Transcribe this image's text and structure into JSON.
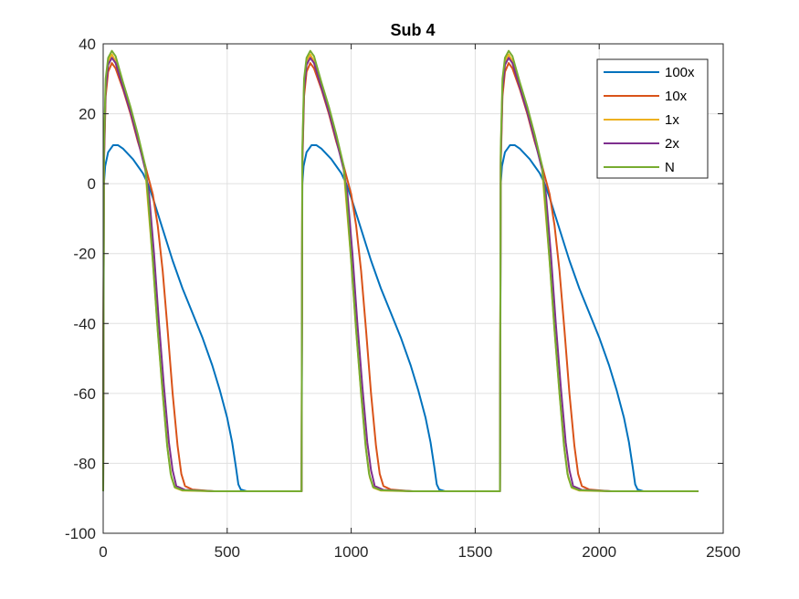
{
  "chart_data": {
    "type": "line",
    "title": "Sub 4",
    "xlabel": "",
    "ylabel": "",
    "xlim": [
      0,
      2500
    ],
    "ylim": [
      -100,
      40
    ],
    "x_ticks": [
      0,
      500,
      1000,
      1500,
      2000,
      2500
    ],
    "y_ticks": [
      -100,
      -80,
      -60,
      -40,
      -20,
      0,
      20,
      40
    ],
    "grid": true,
    "legend_position": "top-right",
    "period": 800,
    "cycles": 3,
    "x_end": 2400,
    "series": [
      {
        "name": "100x",
        "color": "#0072BD",
        "points": [
          [
            0,
            -88
          ],
          [
            1,
            -60
          ],
          [
            3,
            0
          ],
          [
            8,
            5
          ],
          [
            20,
            9
          ],
          [
            40,
            11
          ],
          [
            60,
            11
          ],
          [
            80,
            10
          ],
          [
            100,
            8.5
          ],
          [
            120,
            7
          ],
          [
            140,
            5
          ],
          [
            160,
            3
          ],
          [
            180,
            0
          ],
          [
            200,
            -4
          ],
          [
            240,
            -13
          ],
          [
            280,
            -22
          ],
          [
            320,
            -30
          ],
          [
            360,
            -37
          ],
          [
            400,
            -44
          ],
          [
            440,
            -52
          ],
          [
            470,
            -59
          ],
          [
            500,
            -67
          ],
          [
            520,
            -74
          ],
          [
            535,
            -81
          ],
          [
            545,
            -86
          ],
          [
            555,
            -87.5
          ],
          [
            580,
            -88
          ],
          [
            800,
            -88
          ]
        ]
      },
      {
        "name": "10x",
        "color": "#D95319",
        "points": [
          [
            0,
            -88
          ],
          [
            1,
            -50
          ],
          [
            3,
            5
          ],
          [
            10,
            25
          ],
          [
            20,
            32
          ],
          [
            35,
            34.5
          ],
          [
            50,
            33
          ],
          [
            80,
            27
          ],
          [
            110,
            20
          ],
          [
            140,
            12
          ],
          [
            170,
            5
          ],
          [
            200,
            -3
          ],
          [
            220,
            -12
          ],
          [
            240,
            -25
          ],
          [
            260,
            -42
          ],
          [
            280,
            -60
          ],
          [
            300,
            -75
          ],
          [
            315,
            -83
          ],
          [
            330,
            -86.5
          ],
          [
            360,
            -87.5
          ],
          [
            450,
            -88
          ],
          [
            800,
            -88
          ]
        ]
      },
      {
        "name": "1x",
        "color": "#EDB120",
        "points": [
          [
            0,
            -88
          ],
          [
            1,
            -50
          ],
          [
            3,
            8
          ],
          [
            10,
            28
          ],
          [
            20,
            35
          ],
          [
            35,
            37
          ],
          [
            50,
            35
          ],
          [
            80,
            28
          ],
          [
            110,
            21
          ],
          [
            140,
            13
          ],
          [
            170,
            4
          ],
          [
            180,
            -5
          ],
          [
            200,
            -22
          ],
          [
            220,
            -42
          ],
          [
            240,
            -60
          ],
          [
            260,
            -76
          ],
          [
            275,
            -84
          ],
          [
            290,
            -87
          ],
          [
            320,
            -87.8
          ],
          [
            450,
            -88
          ],
          [
            800,
            -88
          ]
        ]
      },
      {
        "name": "2x",
        "color": "#7E2F8E",
        "points": [
          [
            0,
            -88
          ],
          [
            1,
            -50
          ],
          [
            3,
            7
          ],
          [
            10,
            27
          ],
          [
            20,
            34
          ],
          [
            35,
            36
          ],
          [
            50,
            34.5
          ],
          [
            80,
            27.5
          ],
          [
            110,
            20.5
          ],
          [
            140,
            12.5
          ],
          [
            170,
            4
          ],
          [
            185,
            -3
          ],
          [
            205,
            -20
          ],
          [
            225,
            -40
          ],
          [
            245,
            -58
          ],
          [
            265,
            -74
          ],
          [
            280,
            -82
          ],
          [
            295,
            -86.5
          ],
          [
            330,
            -87.6
          ],
          [
            450,
            -88
          ],
          [
            800,
            -88
          ]
        ]
      },
      {
        "name": "N",
        "color": "#77AC30",
        "points": [
          [
            0,
            -88
          ],
          [
            1,
            -50
          ],
          [
            3,
            10
          ],
          [
            10,
            30
          ],
          [
            20,
            36
          ],
          [
            35,
            38
          ],
          [
            50,
            36.5
          ],
          [
            80,
            29
          ],
          [
            110,
            22
          ],
          [
            140,
            14
          ],
          [
            170,
            5
          ],
          [
            182,
            -5
          ],
          [
            200,
            -22
          ],
          [
            220,
            -42
          ],
          [
            240,
            -60
          ],
          [
            258,
            -75
          ],
          [
            272,
            -83
          ],
          [
            288,
            -86.8
          ],
          [
            320,
            -87.7
          ],
          [
            450,
            -88
          ],
          [
            800,
            -88
          ]
        ]
      }
    ]
  }
}
